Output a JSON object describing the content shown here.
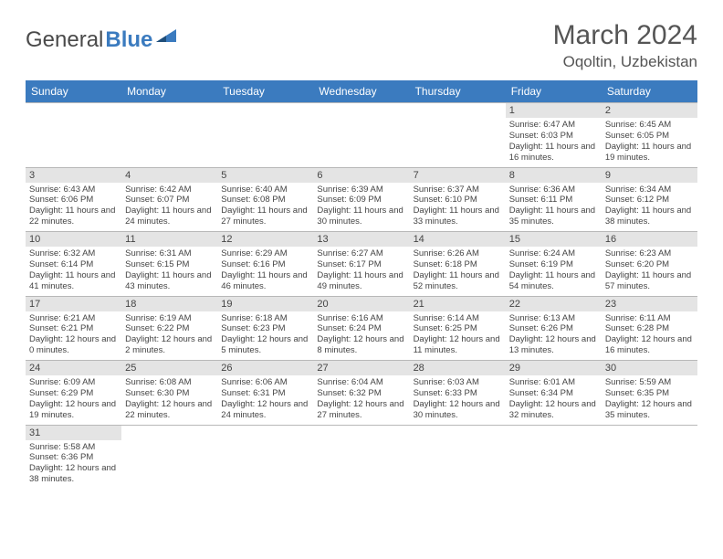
{
  "logo": {
    "first": "General",
    "second": "Blue"
  },
  "header": {
    "title": "March 2024",
    "location": "Oqoltin, Uzbekistan"
  },
  "colors": {
    "header_bg": "#3b7bbf",
    "header_text": "#ffffff",
    "daynum_bg": "#e4e4e4",
    "border": "#b8b8b8",
    "text": "#444444"
  },
  "fonts": {
    "title_size": 30,
    "location_size": 17,
    "dayhead_size": 12,
    "daynum_size": 11,
    "body_size": 9.5
  },
  "day_names": [
    "Sunday",
    "Monday",
    "Tuesday",
    "Wednesday",
    "Thursday",
    "Friday",
    "Saturday"
  ],
  "weeks": [
    [
      {
        "empty": true
      },
      {
        "empty": true
      },
      {
        "empty": true
      },
      {
        "empty": true
      },
      {
        "empty": true
      },
      {
        "n": "1",
        "sunrise": "Sunrise: 6:47 AM",
        "sunset": "Sunset: 6:03 PM",
        "daylight": "Daylight: 11 hours and 16 minutes."
      },
      {
        "n": "2",
        "sunrise": "Sunrise: 6:45 AM",
        "sunset": "Sunset: 6:05 PM",
        "daylight": "Daylight: 11 hours and 19 minutes."
      }
    ],
    [
      {
        "n": "3",
        "sunrise": "Sunrise: 6:43 AM",
        "sunset": "Sunset: 6:06 PM",
        "daylight": "Daylight: 11 hours and 22 minutes."
      },
      {
        "n": "4",
        "sunrise": "Sunrise: 6:42 AM",
        "sunset": "Sunset: 6:07 PM",
        "daylight": "Daylight: 11 hours and 24 minutes."
      },
      {
        "n": "5",
        "sunrise": "Sunrise: 6:40 AM",
        "sunset": "Sunset: 6:08 PM",
        "daylight": "Daylight: 11 hours and 27 minutes."
      },
      {
        "n": "6",
        "sunrise": "Sunrise: 6:39 AM",
        "sunset": "Sunset: 6:09 PM",
        "daylight": "Daylight: 11 hours and 30 minutes."
      },
      {
        "n": "7",
        "sunrise": "Sunrise: 6:37 AM",
        "sunset": "Sunset: 6:10 PM",
        "daylight": "Daylight: 11 hours and 33 minutes."
      },
      {
        "n": "8",
        "sunrise": "Sunrise: 6:36 AM",
        "sunset": "Sunset: 6:11 PM",
        "daylight": "Daylight: 11 hours and 35 minutes."
      },
      {
        "n": "9",
        "sunrise": "Sunrise: 6:34 AM",
        "sunset": "Sunset: 6:12 PM",
        "daylight": "Daylight: 11 hours and 38 minutes."
      }
    ],
    [
      {
        "n": "10",
        "sunrise": "Sunrise: 6:32 AM",
        "sunset": "Sunset: 6:14 PM",
        "daylight": "Daylight: 11 hours and 41 minutes."
      },
      {
        "n": "11",
        "sunrise": "Sunrise: 6:31 AM",
        "sunset": "Sunset: 6:15 PM",
        "daylight": "Daylight: 11 hours and 43 minutes."
      },
      {
        "n": "12",
        "sunrise": "Sunrise: 6:29 AM",
        "sunset": "Sunset: 6:16 PM",
        "daylight": "Daylight: 11 hours and 46 minutes."
      },
      {
        "n": "13",
        "sunrise": "Sunrise: 6:27 AM",
        "sunset": "Sunset: 6:17 PM",
        "daylight": "Daylight: 11 hours and 49 minutes."
      },
      {
        "n": "14",
        "sunrise": "Sunrise: 6:26 AM",
        "sunset": "Sunset: 6:18 PM",
        "daylight": "Daylight: 11 hours and 52 minutes."
      },
      {
        "n": "15",
        "sunrise": "Sunrise: 6:24 AM",
        "sunset": "Sunset: 6:19 PM",
        "daylight": "Daylight: 11 hours and 54 minutes."
      },
      {
        "n": "16",
        "sunrise": "Sunrise: 6:23 AM",
        "sunset": "Sunset: 6:20 PM",
        "daylight": "Daylight: 11 hours and 57 minutes."
      }
    ],
    [
      {
        "n": "17",
        "sunrise": "Sunrise: 6:21 AM",
        "sunset": "Sunset: 6:21 PM",
        "daylight": "Daylight: 12 hours and 0 minutes."
      },
      {
        "n": "18",
        "sunrise": "Sunrise: 6:19 AM",
        "sunset": "Sunset: 6:22 PM",
        "daylight": "Daylight: 12 hours and 2 minutes."
      },
      {
        "n": "19",
        "sunrise": "Sunrise: 6:18 AM",
        "sunset": "Sunset: 6:23 PM",
        "daylight": "Daylight: 12 hours and 5 minutes."
      },
      {
        "n": "20",
        "sunrise": "Sunrise: 6:16 AM",
        "sunset": "Sunset: 6:24 PM",
        "daylight": "Daylight: 12 hours and 8 minutes."
      },
      {
        "n": "21",
        "sunrise": "Sunrise: 6:14 AM",
        "sunset": "Sunset: 6:25 PM",
        "daylight": "Daylight: 12 hours and 11 minutes."
      },
      {
        "n": "22",
        "sunrise": "Sunrise: 6:13 AM",
        "sunset": "Sunset: 6:26 PM",
        "daylight": "Daylight: 12 hours and 13 minutes."
      },
      {
        "n": "23",
        "sunrise": "Sunrise: 6:11 AM",
        "sunset": "Sunset: 6:28 PM",
        "daylight": "Daylight: 12 hours and 16 minutes."
      }
    ],
    [
      {
        "n": "24",
        "sunrise": "Sunrise: 6:09 AM",
        "sunset": "Sunset: 6:29 PM",
        "daylight": "Daylight: 12 hours and 19 minutes."
      },
      {
        "n": "25",
        "sunrise": "Sunrise: 6:08 AM",
        "sunset": "Sunset: 6:30 PM",
        "daylight": "Daylight: 12 hours and 22 minutes."
      },
      {
        "n": "26",
        "sunrise": "Sunrise: 6:06 AM",
        "sunset": "Sunset: 6:31 PM",
        "daylight": "Daylight: 12 hours and 24 minutes."
      },
      {
        "n": "27",
        "sunrise": "Sunrise: 6:04 AM",
        "sunset": "Sunset: 6:32 PM",
        "daylight": "Daylight: 12 hours and 27 minutes."
      },
      {
        "n": "28",
        "sunrise": "Sunrise: 6:03 AM",
        "sunset": "Sunset: 6:33 PM",
        "daylight": "Daylight: 12 hours and 30 minutes."
      },
      {
        "n": "29",
        "sunrise": "Sunrise: 6:01 AM",
        "sunset": "Sunset: 6:34 PM",
        "daylight": "Daylight: 12 hours and 32 minutes."
      },
      {
        "n": "30",
        "sunrise": "Sunrise: 5:59 AM",
        "sunset": "Sunset: 6:35 PM",
        "daylight": "Daylight: 12 hours and 35 minutes."
      }
    ],
    [
      {
        "n": "31",
        "sunrise": "Sunrise: 5:58 AM",
        "sunset": "Sunset: 6:36 PM",
        "daylight": "Daylight: 12 hours and 38 minutes."
      },
      {
        "empty": true
      },
      {
        "empty": true
      },
      {
        "empty": true
      },
      {
        "empty": true
      },
      {
        "empty": true
      },
      {
        "empty": true
      }
    ]
  ]
}
